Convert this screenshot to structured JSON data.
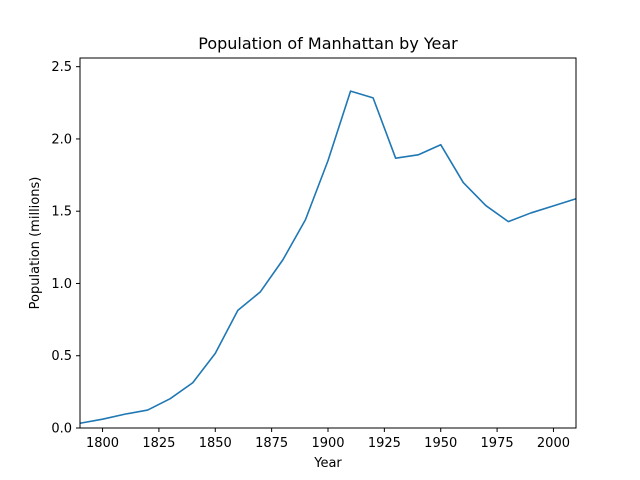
{
  "chart_data": {
    "type": "line",
    "title": "Population of Manhattan by Year",
    "xlabel": "Year",
    "ylabel": "Population (millions)",
    "xlim": [
      1790,
      2010
    ],
    "ylim": [
      0,
      2.56
    ],
    "grid": false,
    "xticks": [
      1800,
      1825,
      1850,
      1875,
      1900,
      1925,
      1950,
      1975,
      2000
    ],
    "xtick_labels": [
      "1800",
      "1825",
      "1850",
      "1875",
      "1900",
      "1925",
      "1950",
      "1975",
      "2000"
    ],
    "yticks": [
      0.0,
      0.5,
      1.0,
      1.5,
      2.0,
      2.5
    ],
    "ytick_labels": [
      "0.0",
      "0.5",
      "1.0",
      "1.5",
      "2.0",
      "2.5"
    ],
    "line_color": "#1f77b4",
    "series": [
      {
        "x": [
          1790,
          1800,
          1810,
          1820,
          1830,
          1840,
          1850,
          1860,
          1870,
          1880,
          1890,
          1900,
          1910,
          1920,
          1930,
          1940,
          1950,
          1960,
          1970,
          1980,
          1990,
          2000,
          2010
        ],
        "values": [
          0.033,
          0.061,
          0.096,
          0.124,
          0.203,
          0.313,
          0.516,
          0.814,
          0.942,
          1.164,
          1.441,
          1.85,
          2.331,
          2.284,
          1.867,
          1.89,
          1.96,
          1.698,
          1.539,
          1.428,
          1.488,
          1.537,
          1.586
        ]
      }
    ]
  }
}
